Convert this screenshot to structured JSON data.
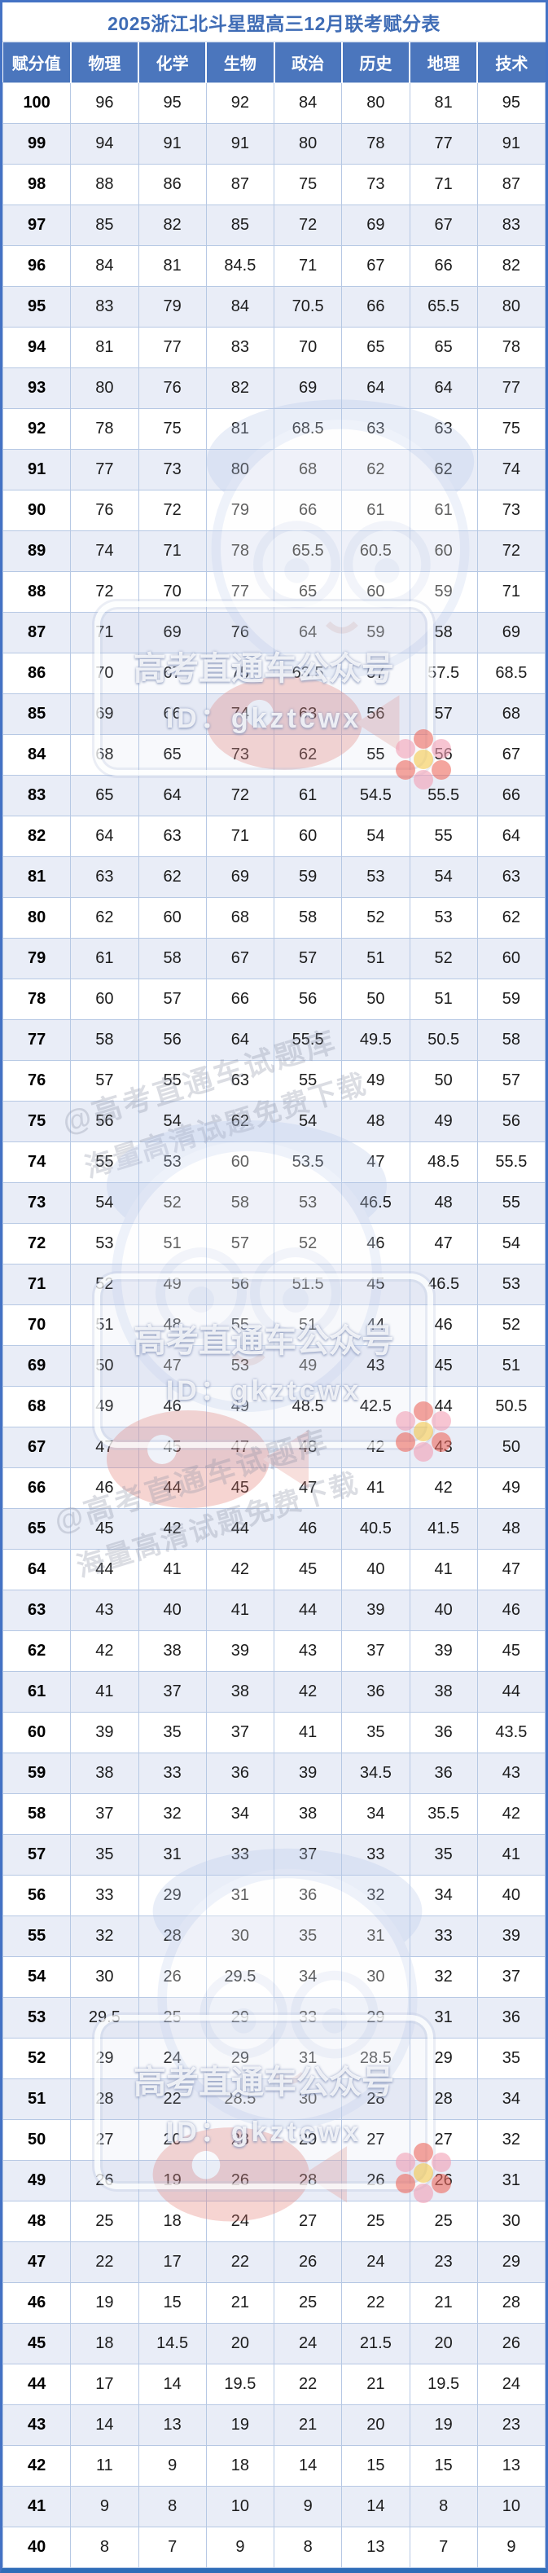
{
  "title": "2025浙江北斗星盟高三12月联考赋分表",
  "watermark": {
    "badge_line1": "高考直通车公众号",
    "badge_line2": "ID：gkztcwx",
    "diagonal_line1": "@高考直通车试题库",
    "diagonal_line2": "海量高清试题免费下载"
  },
  "colors": {
    "accent_blue": "#4472C4",
    "header_bg": "#4B76BD",
    "header_text": "#FFFFFF",
    "title_text": "#3F6CB5",
    "row_alt_bg": "#E9EDF7",
    "cell_border": "#B6C8E4",
    "bottom_border": "#2F6DB8"
  },
  "chart_data": {
    "type": "table",
    "title": "2025浙江北斗星盟高三12月联考赋分表",
    "columns": [
      "赋分值",
      "物理",
      "化学",
      "生物",
      "政治",
      "历史",
      "地理",
      "技术"
    ],
    "rows": [
      [
        100,
        96,
        95,
        92,
        84,
        80,
        81,
        95
      ],
      [
        99,
        94,
        91,
        91,
        80,
        78,
        77,
        91
      ],
      [
        98,
        88,
        86,
        87,
        75,
        73,
        71,
        87
      ],
      [
        97,
        85,
        82,
        85,
        72,
        69,
        67,
        83
      ],
      [
        96,
        84,
        81,
        84.5,
        71,
        67,
        66,
        82
      ],
      [
        95,
        83,
        79,
        84,
        70.5,
        66,
        65.5,
        80
      ],
      [
        94,
        81,
        77,
        83,
        70,
        65,
        65,
        78
      ],
      [
        93,
        80,
        76,
        82,
        69,
        64,
        64,
        77
      ],
      [
        92,
        78,
        75,
        81,
        68.5,
        63,
        63,
        75
      ],
      [
        91,
        77,
        73,
        80,
        68,
        62,
        62,
        74
      ],
      [
        90,
        76,
        72,
        79,
        66,
        61,
        61,
        73
      ],
      [
        89,
        74,
        71,
        78,
        65.5,
        60.5,
        60,
        72
      ],
      [
        88,
        72,
        70,
        77,
        65,
        60,
        59,
        71
      ],
      [
        87,
        71,
        69,
        76,
        64,
        59,
        58,
        69
      ],
      [
        86,
        70,
        67,
        75,
        63.5,
        57,
        57.5,
        68.5
      ],
      [
        85,
        69,
        66,
        74,
        63,
        56,
        57,
        68
      ],
      [
        84,
        68,
        65,
        73,
        62,
        55,
        56,
        67
      ],
      [
        83,
        65,
        64,
        72,
        61,
        54.5,
        55.5,
        66
      ],
      [
        82,
        64,
        63,
        71,
        60,
        54,
        55,
        64
      ],
      [
        81,
        63,
        62,
        69,
        59,
        53,
        54,
        63
      ],
      [
        80,
        62,
        60,
        68,
        58,
        52,
        53,
        62
      ],
      [
        79,
        61,
        58,
        67,
        57,
        51,
        52,
        60
      ],
      [
        78,
        60,
        57,
        66,
        56,
        50,
        51,
        59
      ],
      [
        77,
        58,
        56,
        64,
        55.5,
        49.5,
        50.5,
        58
      ],
      [
        76,
        57,
        55,
        63,
        55,
        49,
        50,
        57
      ],
      [
        75,
        56,
        54,
        62,
        54,
        48,
        49,
        56
      ],
      [
        74,
        55,
        53,
        60,
        53.5,
        47,
        48.5,
        55.5
      ],
      [
        73,
        54,
        52,
        58,
        53,
        46.5,
        48,
        55
      ],
      [
        72,
        53,
        51,
        57,
        52,
        46,
        47,
        54
      ],
      [
        71,
        52,
        49,
        56,
        51.5,
        45,
        46.5,
        53
      ],
      [
        70,
        51,
        48,
        55,
        51,
        44,
        46,
        52
      ],
      [
        69,
        50,
        47,
        53,
        49,
        43,
        45,
        51
      ],
      [
        68,
        49,
        46,
        49,
        48.5,
        42.5,
        44,
        50.5
      ],
      [
        67,
        47,
        45,
        47,
        48,
        42,
        43,
        50
      ],
      [
        66,
        46,
        44,
        45,
        47,
        41,
        42,
        49
      ],
      [
        65,
        45,
        42,
        44,
        46,
        40.5,
        41.5,
        48
      ],
      [
        64,
        44,
        41,
        42,
        45,
        40,
        41,
        47
      ],
      [
        63,
        43,
        40,
        41,
        44,
        39,
        40,
        46
      ],
      [
        62,
        42,
        38,
        39,
        43,
        37,
        39,
        45
      ],
      [
        61,
        41,
        37,
        38,
        42,
        36,
        38,
        44
      ],
      [
        60,
        39,
        35,
        37,
        41,
        35,
        36,
        43.5
      ],
      [
        59,
        38,
        33,
        36,
        39,
        34.5,
        36,
        43
      ],
      [
        58,
        37,
        32,
        34,
        38,
        34,
        35.5,
        42
      ],
      [
        57,
        35,
        31,
        33,
        37,
        33,
        35,
        41
      ],
      [
        56,
        33,
        29,
        31,
        36,
        32,
        34,
        40
      ],
      [
        55,
        32,
        28,
        30,
        35,
        31,
        33,
        39
      ],
      [
        54,
        30,
        26,
        29.5,
        34,
        30,
        32,
        37
      ],
      [
        53,
        29.5,
        25,
        29,
        33,
        29,
        31,
        36
      ],
      [
        52,
        29,
        24,
        29,
        31,
        28.5,
        29,
        35
      ],
      [
        51,
        28,
        22,
        28.5,
        30,
        28,
        28,
        34
      ],
      [
        50,
        27,
        20,
        28,
        29,
        27,
        27,
        32
      ],
      [
        49,
        26,
        19,
        26,
        28,
        26,
        26,
        31
      ],
      [
        48,
        25,
        18,
        24,
        27,
        25,
        25,
        30
      ],
      [
        47,
        22,
        17,
        22,
        26,
        24,
        23,
        29
      ],
      [
        46,
        19,
        15,
        21,
        25,
        22,
        21,
        28
      ],
      [
        45,
        18,
        14.5,
        20,
        24,
        21.5,
        20,
        26
      ],
      [
        44,
        17,
        14,
        19.5,
        22,
        21,
        19.5,
        24
      ],
      [
        43,
        14,
        13,
        19,
        21,
        20,
        19,
        23
      ],
      [
        42,
        11,
        9,
        18,
        14,
        15,
        15,
        13
      ],
      [
        41,
        9,
        8,
        10,
        9,
        14,
        8,
        10
      ],
      [
        40,
        8,
        7,
        9,
        8,
        13,
        7,
        9
      ]
    ]
  }
}
